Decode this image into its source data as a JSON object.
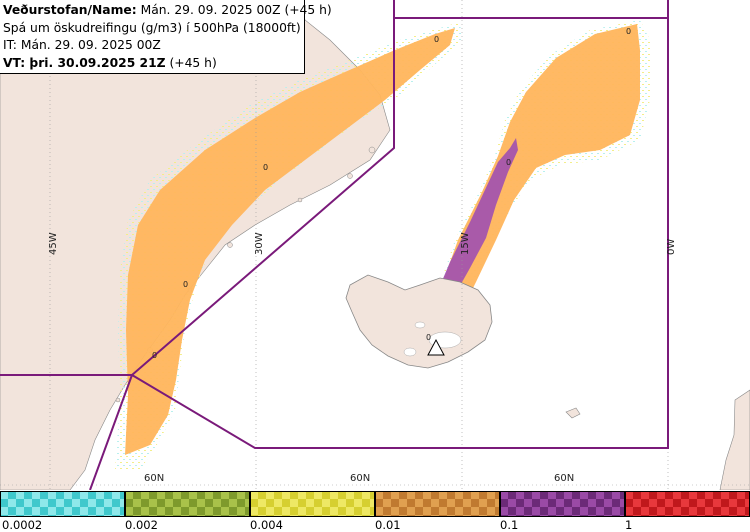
{
  "info": {
    "line1_label": "Veðurstofan/Name:",
    "line1_value": "Mán. 29. 09. 2025 00Z (+45 h)",
    "line2": "Spá um öskudreifingu (g/m3) í 500hPa (18000ft)",
    "line3": "IT: Mán. 29. 09. 2025 00Z",
    "line4_label": "VT: þri. 30.09.2025 21Z",
    "line4_value": "(+45 h)"
  },
  "grid_labels": {
    "lon_45w": "45W",
    "lon_30w": "30W",
    "lon_15w": "15W",
    "lon_0w": "0W",
    "lat_60n_a": "60N",
    "lat_60n_b": "60N",
    "lat_60n_c": "60N"
  },
  "contour_labels": [
    "0",
    "0",
    "0",
    "0",
    "0",
    "0",
    "0"
  ],
  "colors": {
    "sea": "#ffffff",
    "land": "#f2e4dc",
    "ash_low": "#ffb55c",
    "ash_yellow": "#f3ee8a",
    "ash_cyan": "#b8f0ee",
    "ash_high": "#a050b0",
    "region_line": "#7a1a7a"
  },
  "legend": {
    "items": [
      {
        "label": "0.0002",
        "color_a": "#3fc8cc",
        "color_b": "#8ee8ea"
      },
      {
        "label": "0.002",
        "color_a": "#7e9a2c",
        "color_b": "#a9c24a"
      },
      {
        "label": "0.004",
        "color_a": "#d6cf30",
        "color_b": "#eee864"
      },
      {
        "label": "0.01",
        "color_a": "#c07a30",
        "color_b": "#e0a050"
      },
      {
        "label": "0.1",
        "color_a": "#6c2a78",
        "color_b": "#9a4aa6"
      },
      {
        "label": "1",
        "color_a": "#c0181c",
        "color_b": "#e8383c"
      }
    ]
  }
}
